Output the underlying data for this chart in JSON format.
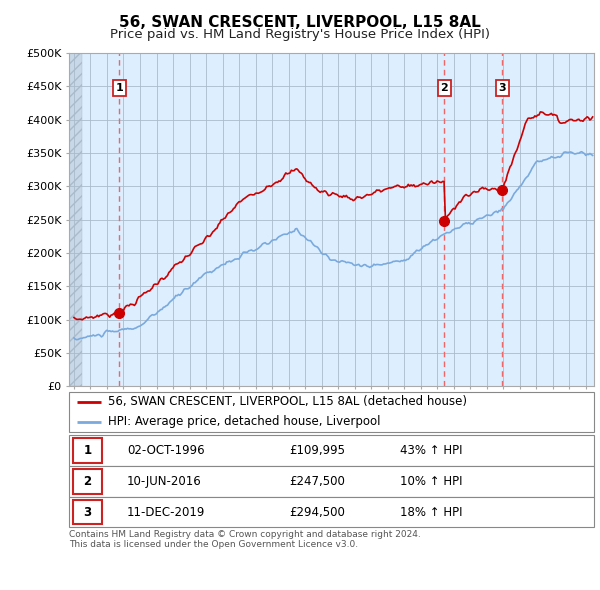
{
  "title": "56, SWAN CRESCENT, LIVERPOOL, L15 8AL",
  "subtitle": "Price paid vs. HM Land Registry's House Price Index (HPI)",
  "red_line_label": "56, SWAN CRESCENT, LIVERPOOL, L15 8AL (detached house)",
  "blue_line_label": "HPI: Average price, detached house, Liverpool",
  "ylim": [
    0,
    500000
  ],
  "yticks": [
    0,
    50000,
    100000,
    150000,
    200000,
    250000,
    300000,
    350000,
    400000,
    450000,
    500000
  ],
  "ytick_labels": [
    "£0",
    "£50K",
    "£100K",
    "£150K",
    "£200K",
    "£250K",
    "£300K",
    "£350K",
    "£400K",
    "£450K",
    "£500K"
  ],
  "sale_events": [
    {
      "label": "1",
      "date_str": "02-OCT-1996",
      "price": 109995,
      "pct": "43% ↑ HPI",
      "year": 1996.75
    },
    {
      "label": "2",
      "date_str": "10-JUN-2016",
      "price": 247500,
      "pct": "10% ↑ HPI",
      "year": 2016.44
    },
    {
      "label": "3",
      "date_str": "11-DEC-2019",
      "price": 294500,
      "pct": "18% ↑ HPI",
      "year": 2019.94
    }
  ],
  "red_color": "#cc0000",
  "blue_color": "#7aaadd",
  "dashed_color": "#ee6666",
  "background_color": "#ffffff",
  "plot_bg_color": "#ddeeff",
  "grid_color": "#aabbcc",
  "title_fontsize": 11,
  "subtitle_fontsize": 9.5,
  "tick_fontsize": 8,
  "legend_fontsize": 8.5,
  "table_fontsize": 8.5,
  "footer_fontsize": 6.5,
  "footer_text": "Contains HM Land Registry data © Crown copyright and database right 2024.\nThis data is licensed under the Open Government Licence v3.0.",
  "xmin": 1993.7,
  "xmax": 2025.5
}
